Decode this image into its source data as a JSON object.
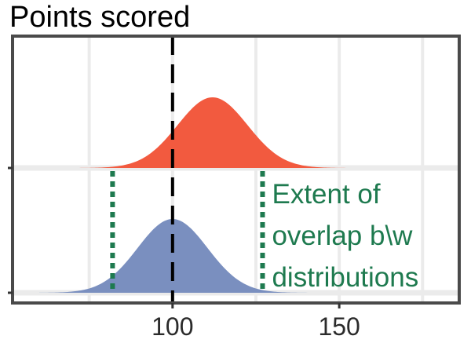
{
  "chart_data": {
    "type": "area",
    "title": "Points scored",
    "xlabel": "",
    "ylabel": "",
    "xlim": [
      52,
      186
    ],
    "x_ticks": [
      100,
      150
    ],
    "x_gridlines": [
      75,
      100,
      125,
      150,
      175
    ],
    "grid": true,
    "series": [
      {
        "name": "",
        "panel": "top",
        "color": "#f25a3f",
        "mean": 112,
        "sd": 10.5,
        "range": [
          60,
          177
        ]
      },
      {
        "name": "",
        "panel": "bottom",
        "color": "#7a8fbf",
        "mean": 100,
        "sd": 10.5,
        "range": [
          60,
          177
        ]
      }
    ],
    "reference_line": {
      "x": 100,
      "style": "dashed",
      "color": "#000000"
    },
    "overlap_lines": {
      "x": [
        82,
        127
      ],
      "style": "dotted",
      "color": "#1e7a4f"
    },
    "annotation": {
      "lines": [
        "Extent of",
        "overlap b\\w",
        "distributions"
      ],
      "color": "#1e7a4f"
    }
  }
}
